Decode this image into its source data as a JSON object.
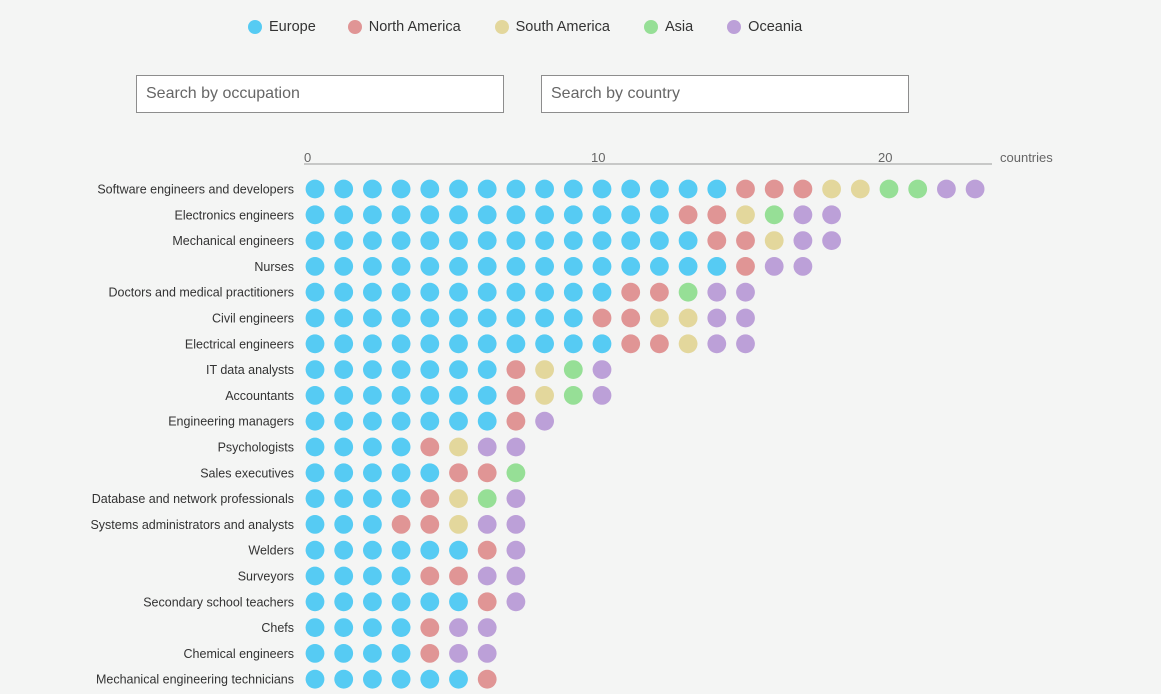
{
  "legend": {
    "items": [
      {
        "key": "eu",
        "label": "Europe",
        "color": "#56cbf3"
      },
      {
        "key": "na",
        "label": "North America",
        "color": "#e09595"
      },
      {
        "key": "sa",
        "label": "South America",
        "color": "#e3d79c"
      },
      {
        "key": "as",
        "label": "Asia",
        "color": "#96df96"
      },
      {
        "key": "oc",
        "label": "Oceania",
        "color": "#bca0d8"
      }
    ]
  },
  "search": {
    "occupation_placeholder": "Search by occupation",
    "country_placeholder": "Search by country"
  },
  "chart_data": {
    "type": "scatter",
    "xlabel": "countries",
    "xlim": [
      0,
      24
    ],
    "ticks": [
      0,
      10,
      20
    ],
    "series": [
      {
        "name": "Europe",
        "key": "eu"
      },
      {
        "name": "North America",
        "key": "na"
      },
      {
        "name": "South America",
        "key": "sa"
      },
      {
        "name": "Asia",
        "key": "as"
      },
      {
        "name": "Oceania",
        "key": "oc"
      }
    ],
    "rows": [
      {
        "label": "Software engineers and developers",
        "counts": {
          "eu": 15,
          "na": 3,
          "sa": 2,
          "as": 2,
          "oc": 2
        }
      },
      {
        "label": "Electronics engineers",
        "counts": {
          "eu": 13,
          "na": 2,
          "sa": 1,
          "as": 1,
          "oc": 2
        }
      },
      {
        "label": "Mechanical engineers",
        "counts": {
          "eu": 14,
          "na": 2,
          "sa": 1,
          "as": 0,
          "oc": 2
        }
      },
      {
        "label": "Nurses",
        "counts": {
          "eu": 15,
          "na": 1,
          "sa": 0,
          "as": 0,
          "oc": 2
        }
      },
      {
        "label": "Doctors and medical practitioners",
        "counts": {
          "eu": 11,
          "na": 2,
          "sa": 0,
          "as": 1,
          "oc": 2
        }
      },
      {
        "label": "Civil engineers",
        "counts": {
          "eu": 10,
          "na": 2,
          "sa": 2,
          "as": 0,
          "oc": 2
        }
      },
      {
        "label": "Electrical engineers",
        "counts": {
          "eu": 11,
          "na": 2,
          "sa": 1,
          "as": 0,
          "oc": 2
        }
      },
      {
        "label": "IT data analysts",
        "counts": {
          "eu": 7,
          "na": 1,
          "sa": 1,
          "as": 1,
          "oc": 1
        }
      },
      {
        "label": "Accountants",
        "counts": {
          "eu": 7,
          "na": 1,
          "sa": 1,
          "as": 1,
          "oc": 1
        }
      },
      {
        "label": "Engineering managers",
        "counts": {
          "eu": 7,
          "na": 1,
          "sa": 0,
          "as": 0,
          "oc": 1
        }
      },
      {
        "label": "Psychologists",
        "counts": {
          "eu": 4,
          "na": 1,
          "sa": 1,
          "as": 0,
          "oc": 2
        }
      },
      {
        "label": "Sales executives",
        "counts": {
          "eu": 5,
          "na": 2,
          "sa": 0,
          "as": 1,
          "oc": 0
        }
      },
      {
        "label": "Database and network professionals",
        "counts": {
          "eu": 4,
          "na": 1,
          "sa": 1,
          "as": 1,
          "oc": 1
        }
      },
      {
        "label": "Systems administrators and analysts",
        "counts": {
          "eu": 3,
          "na": 2,
          "sa": 1,
          "as": 0,
          "oc": 2
        }
      },
      {
        "label": "Welders",
        "counts": {
          "eu": 6,
          "na": 1,
          "sa": 0,
          "as": 0,
          "oc": 1
        }
      },
      {
        "label": "Surveyors",
        "counts": {
          "eu": 4,
          "na": 2,
          "sa": 0,
          "as": 0,
          "oc": 2
        }
      },
      {
        "label": "Secondary school teachers",
        "counts": {
          "eu": 6,
          "na": 1,
          "sa": 0,
          "as": 0,
          "oc": 1
        }
      },
      {
        "label": "Chefs",
        "counts": {
          "eu": 4,
          "na": 1,
          "sa": 0,
          "as": 0,
          "oc": 2
        }
      },
      {
        "label": "Chemical engineers",
        "counts": {
          "eu": 4,
          "na": 1,
          "sa": 0,
          "as": 0,
          "oc": 2
        }
      },
      {
        "label": "Mechanical engineering technicians",
        "counts": {
          "eu": 6,
          "na": 1,
          "sa": 0,
          "as": 0,
          "oc": 0
        }
      }
    ]
  }
}
